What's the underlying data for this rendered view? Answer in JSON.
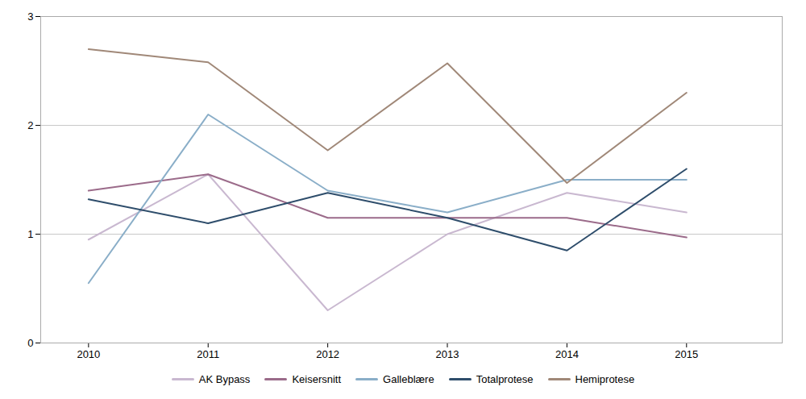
{
  "chart_data": {
    "type": "line",
    "x": [
      2010,
      2011,
      2012,
      2013,
      2014,
      2015
    ],
    "series": [
      {
        "name": "AK Bypass",
        "color": "#c9b8d0",
        "values": [
          0.95,
          1.55,
          0.3,
          1.0,
          1.38,
          1.2
        ]
      },
      {
        "name": "Keisersnitt",
        "color": "#9b6b8a",
        "values": [
          1.4,
          1.55,
          1.15,
          1.15,
          1.15,
          0.97
        ]
      },
      {
        "name": "Galleblære",
        "color": "#8aaec8",
        "values": [
          0.55,
          2.1,
          1.4,
          1.2,
          1.5,
          1.5
        ]
      },
      {
        "name": "Totalprotese",
        "color": "#2e4d6b",
        "values": [
          1.32,
          1.1,
          1.38,
          1.15,
          0.85,
          1.6
        ]
      },
      {
        "name": "Hemiprotese",
        "color": "#a08878",
        "values": [
          2.7,
          2.58,
          1.77,
          2.57,
          1.47,
          2.3
        ]
      }
    ],
    "xlim": [
      2009.6,
      2015.8
    ],
    "xticks": [
      2010,
      2011,
      2012,
      2013,
      2014,
      2015
    ],
    "ylim": [
      0,
      3
    ],
    "yticks": [
      0,
      1,
      2,
      3
    ],
    "grid": true,
    "legend": "bottom"
  }
}
